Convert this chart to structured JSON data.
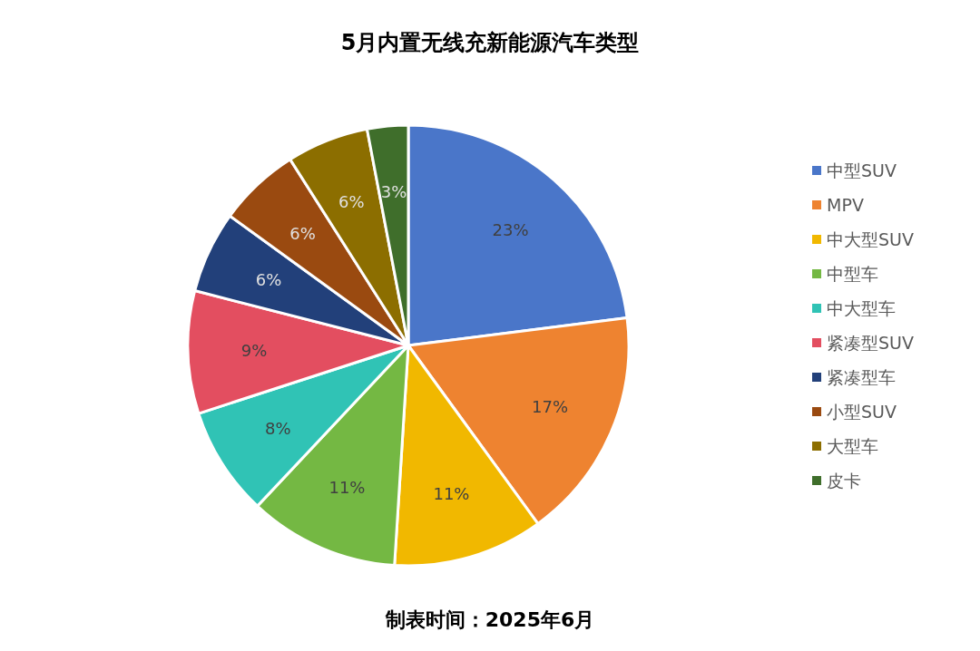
{
  "chart_data": {
    "type": "pie",
    "title": "5月内置无线充新能源汽车类型",
    "categories": [
      "中型SUV",
      "MPV",
      "中大型SUV",
      "中型车",
      "中大型车",
      "紧凑型SUV",
      "紧凑型车",
      "小型SUV",
      "大型车",
      "皮卡"
    ],
    "values": [
      23,
      17,
      11,
      11,
      8,
      9,
      6,
      6,
      6,
      3
    ],
    "colors": [
      "#4a76c9",
      "#ee8330",
      "#f1b800",
      "#74b843",
      "#30c3b5",
      "#e34e60",
      "#22407a",
      "#9a4a10",
      "#8c6e00",
      "#3f6e2b"
    ],
    "value_labels": [
      "23%",
      "17%",
      "11%",
      "11%",
      "8%",
      "9%",
      "6%",
      "6%",
      "6%",
      "3%"
    ],
    "legend": "right",
    "annotations": [
      "制表时间：2025年6月"
    ]
  }
}
